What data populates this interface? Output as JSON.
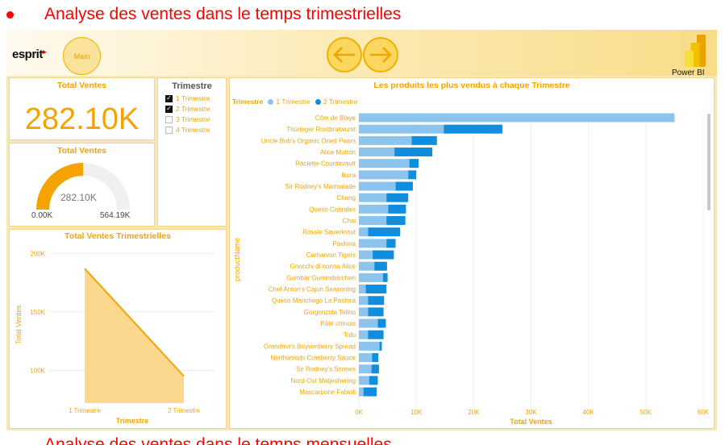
{
  "page": {
    "heading": "Analyse des ventes dans le temps trimestrielles",
    "heading2": "Analyse des ventes dans le temps mensuelles"
  },
  "banner": {
    "logo_text": "esprit",
    "main_button": "Main",
    "back_icon": "arrow-left-icon",
    "forward_icon": "arrow-right-icon",
    "powerbi_label": "Power BI"
  },
  "colors": {
    "accent": "#f4a300",
    "series1": "#8cc4ee",
    "series2": "#118ddd",
    "area": "#fbd88e"
  },
  "kpi": {
    "title": "Total Ventes",
    "value": "282.10K"
  },
  "gauge": {
    "title": "Total Ventes",
    "value_label": "282.10K",
    "min_label": "0.00K",
    "max_label": "564.19K",
    "value": 282.1,
    "max": 564.19
  },
  "slicer": {
    "title": "Trimestre",
    "items": [
      {
        "label": "1 Trimestre",
        "checked": true
      },
      {
        "label": "2 Trimestre",
        "checked": true
      },
      {
        "label": "3 Trimestre",
        "checked": false
      },
      {
        "label": "4 Trimestre",
        "checked": false
      }
    ]
  },
  "line_chart": {
    "title": "Total Ventes Trimestrielles"
  },
  "bar_chart": {
    "title": "Les produits les plus vendus à chaque Trimestre",
    "legend_title": "Trimestre"
  },
  "chart_data": [
    {
      "type": "area",
      "title": "Total Ventes Trimestrielles",
      "xlabel": "Trimestre",
      "ylabel": "Total Ventes",
      "categories": [
        "1 Trimestre",
        "2 Trimestre"
      ],
      "values": [
        187000,
        95000
      ],
      "ylim": [
        72000,
        205000
      ],
      "yticks": [
        100000,
        150000,
        200000
      ],
      "ytick_labels": [
        "100K",
        "150K",
        "200K"
      ],
      "grid": true
    },
    {
      "type": "bar",
      "orientation": "horizontal",
      "stacked": true,
      "title": "Les produits les plus vendus à chaque Trimestre",
      "xlabel": "Total Ventes",
      "ylabel": "productName",
      "legend_title": "Trimestre",
      "legend_position": "top-left",
      "xlim": [
        0,
        60000
      ],
      "xticks": [
        0,
        10000,
        20000,
        30000,
        40000,
        50000,
        60000
      ],
      "xtick_labels": [
        "0K",
        "10K",
        "20K",
        "30K",
        "40K",
        "50K",
        "60K"
      ],
      "categories": [
        "Côte de Blaye",
        "Thüringer Rostbratwurst",
        "Uncle Bob's Organic Dried Pears",
        "Alice Mutton",
        "Raclette Courdavault",
        "Ikura",
        "Sir Rodney's Marmalade",
        "Chang",
        "Queso Cabrales",
        "Chai",
        "Rössle Sauerkraut",
        "Pavlova",
        "Carnarvon Tigers",
        "Gnocchi di nonna Alice",
        "Gumbär Gummibärchen",
        "Chef Anton's Cajun Seasoning",
        "Queso Manchego La Pastora",
        "Gorgonzola Telino",
        "Pâté chinois",
        "Tofu",
        "Grandma's Boysenberry Spread",
        "Northwoods Cranberry Sauce",
        "Sir Rodney's Scones",
        "Nord-Ost Matjeshering",
        "Mascarpone Fabioli"
      ],
      "series": [
        {
          "name": "1 Trimestre",
          "values": [
            55000,
            14800,
            9200,
            6200,
            8800,
            8600,
            6400,
            4800,
            5100,
            4800,
            1600,
            4800,
            2400,
            2700,
            4200,
            1200,
            1600,
            1600,
            3300,
            1600,
            3600,
            2300,
            2200,
            1800,
            800
          ]
        },
        {
          "name": "2 Trimestre",
          "values": [
            0,
            10200,
            4400,
            6600,
            1600,
            1400,
            3000,
            3800,
            3100,
            3300,
            5600,
            1600,
            3700,
            2200,
            800,
            3600,
            2800,
            2700,
            1400,
            2700,
            400,
            1100,
            1300,
            1500,
            2300
          ]
        }
      ]
    }
  ]
}
